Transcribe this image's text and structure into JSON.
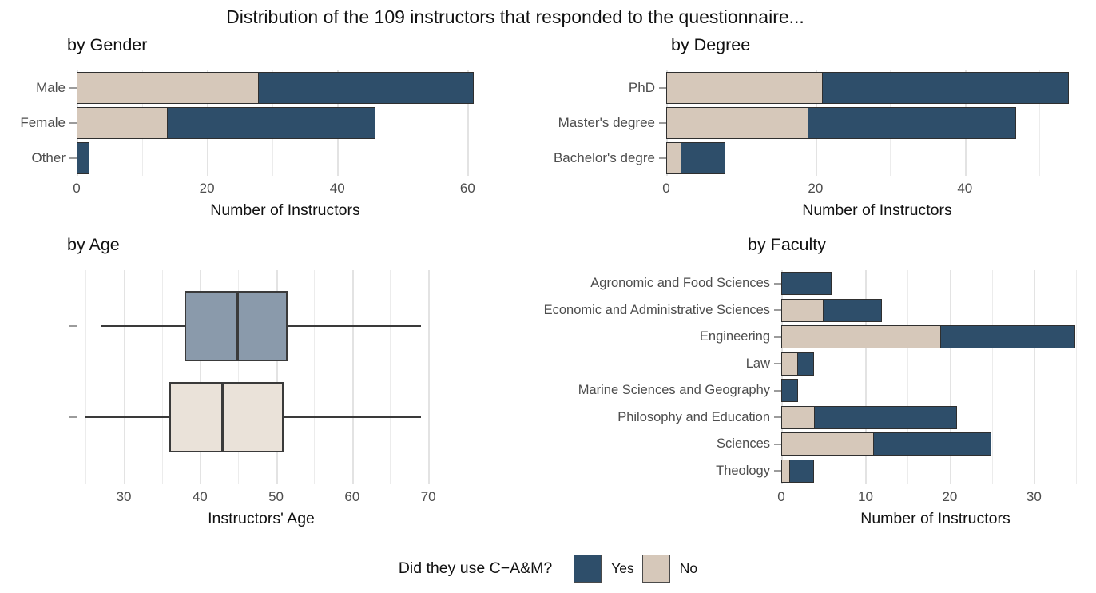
{
  "title": "Distribution of the 109 instructors that responded to the questionnaire...",
  "legend": {
    "question": "Did they use C−A&M?",
    "position": "bottom",
    "items": [
      {
        "label": "Yes",
        "color": "#2E4E6A"
      },
      {
        "label": "No",
        "color": "#D6C8BA"
      }
    ]
  },
  "colors": {
    "yes": "#2E4E6A",
    "no": "#D6C8BA",
    "yes_box_fill": "#8A9AAB",
    "no_box_fill": "#EAE2D9",
    "outline": "#2F2F2F",
    "box_stroke": "#3A3A3A",
    "grid_major": "#E3E3E3",
    "grid_minor": "#ECECEC",
    "axis_text": "#4D4D4D",
    "title_text": "#111111"
  },
  "chart_data": [
    {
      "id": "gender",
      "type": "bar",
      "orientation": "horizontal",
      "stacked": true,
      "grid": true,
      "title": "by Gender",
      "xlabel": "Number of Instructors",
      "categories": [
        "Male",
        "Female",
        "Other"
      ],
      "series": [
        {
          "name": "No",
          "values": [
            28,
            14,
            0
          ]
        },
        {
          "name": "Yes",
          "values": [
            33,
            32,
            2
          ]
        }
      ],
      "totals": [
        61,
        46,
        2
      ],
      "xticks": [
        0,
        20,
        40,
        60
      ],
      "xticks_minor": [
        10,
        30,
        50
      ],
      "xlim": [
        0,
        64
      ]
    },
    {
      "id": "degree",
      "type": "bar",
      "orientation": "horizontal",
      "stacked": true,
      "grid": true,
      "title": "by Degree",
      "xlabel": "Number of Instructors",
      "categories": [
        "PhD",
        "Master's degree",
        "Bachelor's degre"
      ],
      "series": [
        {
          "name": "No",
          "values": [
            21,
            19,
            2
          ]
        },
        {
          "name": "Yes",
          "values": [
            33,
            28,
            6
          ]
        }
      ],
      "totals": [
        54,
        47,
        8
      ],
      "xticks": [
        0,
        20,
        40
      ],
      "xticks_minor": [
        10,
        30,
        50
      ],
      "xlim": [
        0,
        56.5
      ]
    },
    {
      "id": "age",
      "type": "boxplot",
      "orientation": "horizontal",
      "grid": true,
      "title": "by Age",
      "xlabel": "Instructors' Age",
      "groups": [
        {
          "name": "Yes",
          "min": 27,
          "q1": 38,
          "median": 45,
          "q3": 51.5,
          "max": 69
        },
        {
          "name": "No",
          "min": 25,
          "q1": 36,
          "median": 43,
          "q3": 51,
          "max": 69
        }
      ],
      "xticks": [
        30,
        40,
        50,
        60,
        70
      ],
      "xticks_minor": [
        25,
        35,
        45,
        55,
        65
      ],
      "xlim": [
        23.8,
        72.3
      ]
    },
    {
      "id": "faculty",
      "type": "bar",
      "orientation": "horizontal",
      "stacked": true,
      "grid": true,
      "title": "by Faculty",
      "xlabel": "Number of Instructors",
      "categories": [
        "Agronomic and Food Sciences",
        "Economic and Administrative Sciences",
        "Engineering",
        "Law",
        "Marine Sciences and Geography",
        "Philosophy and Education",
        "Sciences",
        "Theology"
      ],
      "series": [
        {
          "name": "No",
          "values": [
            0,
            5,
            19,
            2,
            0,
            4,
            11,
            1
          ]
        },
        {
          "name": "Yes",
          "values": [
            6,
            7,
            16,
            2,
            2,
            17,
            14,
            3
          ]
        }
      ],
      "totals": [
        6,
        12,
        35,
        4,
        2,
        21,
        25,
        4
      ],
      "xticks": [
        0,
        10,
        20,
        30
      ],
      "xticks_minor": [
        5,
        15,
        25,
        35
      ],
      "xlim": [
        0,
        36.6
      ]
    }
  ]
}
